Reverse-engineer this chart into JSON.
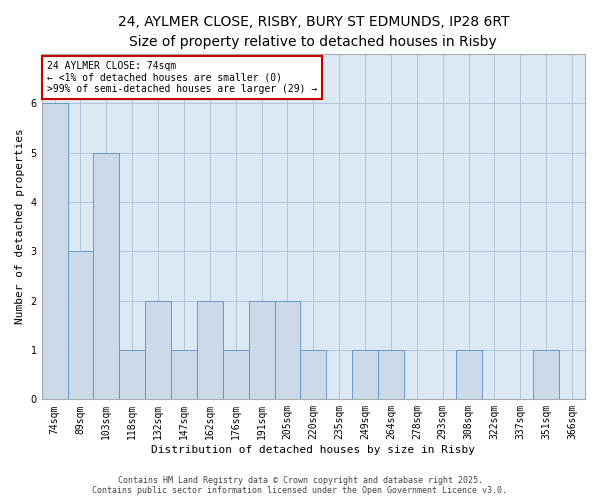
{
  "title_line1": "24, AYLMER CLOSE, RISBY, BURY ST EDMUNDS, IP28 6RT",
  "title_line2": "Size of property relative to detached houses in Risby",
  "categories": [
    "74sqm",
    "89sqm",
    "103sqm",
    "118sqm",
    "132sqm",
    "147sqm",
    "162sqm",
    "176sqm",
    "191sqm",
    "205sqm",
    "220sqm",
    "235sqm",
    "249sqm",
    "264sqm",
    "278sqm",
    "293sqm",
    "308sqm",
    "322sqm",
    "337sqm",
    "351sqm",
    "366sqm"
  ],
  "values": [
    6,
    3,
    5,
    1,
    2,
    1,
    2,
    1,
    2,
    2,
    1,
    0,
    1,
    1,
    0,
    0,
    1,
    0,
    0,
    1,
    0
  ],
  "bar_color": "#ccd9e8",
  "bar_edge_color": "#5b8fc9",
  "xlabel": "Distribution of detached houses by size in Risby",
  "ylabel": "Number of detached properties",
  "ylim": [
    0,
    7
  ],
  "yticks": [
    0,
    1,
    2,
    3,
    4,
    5,
    6
  ],
  "annotation_title": "24 AYLMER CLOSE: 74sqm",
  "annotation_line2": "← <1% of detached houses are smaller (0)",
  "annotation_line3": ">99% of semi-detached houses are larger (29) →",
  "annotation_box_color": "#ffffff",
  "annotation_box_edge": "#cc0000",
  "footer_line1": "Contains HM Land Registry data © Crown copyright and database right 2025.",
  "footer_line2": "Contains public sector information licensed under the Open Government Licence v3.0.",
  "background_color": "#ffffff",
  "plot_bg_color": "#dce9f5",
  "grid_color": "#b0c4d8",
  "title_fontsize": 10,
  "subtitle_fontsize": 9,
  "axis_label_fontsize": 8,
  "tick_fontsize": 7,
  "annotation_fontsize": 7,
  "footer_fontsize": 6
}
